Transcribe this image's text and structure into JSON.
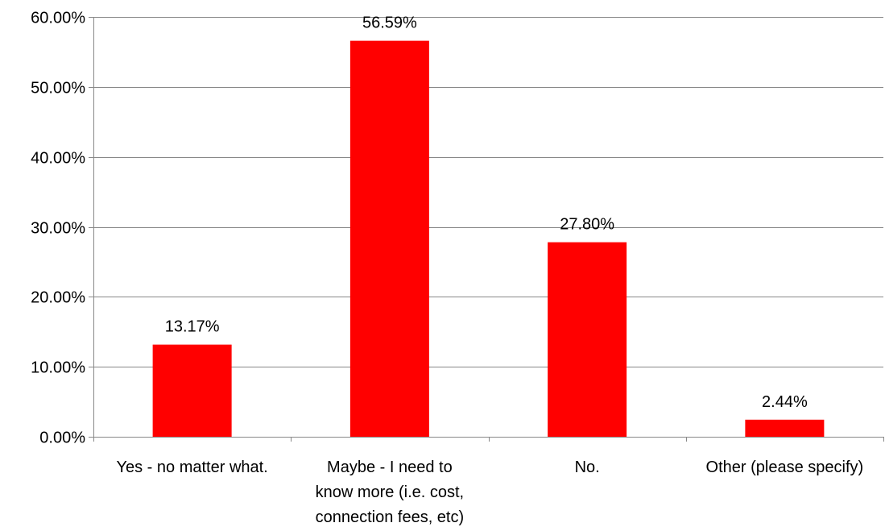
{
  "chart_data": {
    "type": "bar",
    "categories": [
      [
        "Yes - no matter what."
      ],
      [
        "Maybe - I need to",
        "know more (i.e. cost,",
        "connection fees, etc)"
      ],
      [
        "No."
      ],
      [
        "Other (please specify)"
      ]
    ],
    "values": [
      13.17,
      56.59,
      27.8,
      2.44
    ],
    "value_labels": [
      "13.17%",
      "56.59%",
      "27.80%",
      "2.44%"
    ],
    "y_ticks": [
      "0.00%",
      "10.00%",
      "20.00%",
      "30.00%",
      "40.00%",
      "50.00%",
      "60.00%"
    ],
    "ylim": [
      0,
      60
    ],
    "title": "",
    "xlabel": "",
    "ylabel": "",
    "grid": true,
    "legend": "none",
    "colors": {
      "bar": "#ff0000",
      "grid": "#888888",
      "axis": "#888888"
    }
  }
}
